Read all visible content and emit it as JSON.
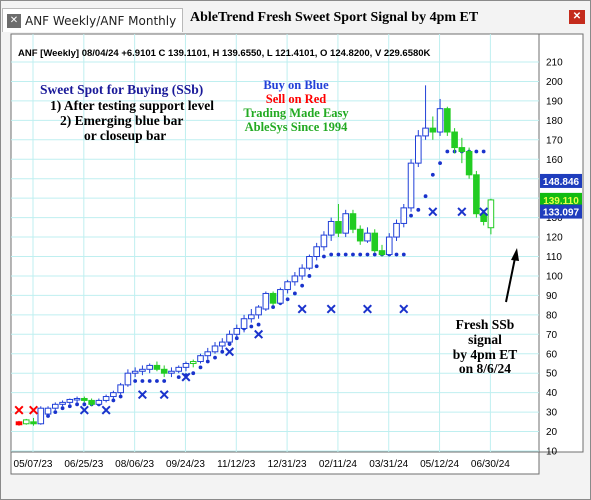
{
  "window": {
    "title": "AbleTrend Fresh Sweet Sport Signal by 4pm ET",
    "tabs": [
      {
        "label": "ANF Weekly/ANF Monthly",
        "active": true
      }
    ]
  },
  "colors": {
    "buy": "#2140d8",
    "sell": "#ff0000",
    "green": "#22cc22",
    "annotation_blue": "#1a1a99",
    "annotation_green": "#22aa22",
    "grid": "#bfeff0",
    "dots": "#1a33cc",
    "last_price_box": "#1f3dbd",
    "last_green_box": "#11bb11"
  },
  "chart_data": {
    "type": "candlestick",
    "symbol_info": "ANF [Weekly] 08/04/24 +6.9101 C 139.1101, H 139.6550, L 121.4101, O 124.8200, V 229.6580K",
    "y_ticks": [
      10,
      20,
      30,
      40,
      50,
      60,
      70,
      80,
      90,
      100,
      110,
      120,
      130,
      140,
      150,
      160,
      170,
      180,
      190,
      200,
      210
    ],
    "ylim": [
      10,
      210
    ],
    "x_ticks": [
      "05/07/23",
      "06/25/23",
      "08/06/23",
      "09/24/23",
      "11/12/23",
      "12/31/23",
      "02/11/24",
      "03/31/24",
      "05/12/24",
      "06/30/24"
    ],
    "price_tags": [
      {
        "value": 148.846,
        "label": "148.846",
        "style": "blue"
      },
      {
        "value": 139.11,
        "label": "139.110",
        "style": "green"
      },
      {
        "value": 133.097,
        "label": "133.097",
        "style": "blue"
      }
    ],
    "candles": [
      {
        "o": 25.0,
        "h": 25.5,
        "l": 23.0,
        "c": 23.5,
        "col": "red"
      },
      {
        "o": 24.0,
        "h": 26.5,
        "l": 23.5,
        "c": 26.0,
        "col": "green"
      },
      {
        "o": 25.0,
        "h": 27.0,
        "l": 23.0,
        "c": 24.0,
        "col": "green"
      },
      {
        "o": 24.0,
        "h": 33.0,
        "l": 23.5,
        "c": 32.0,
        "col": "blue"
      },
      {
        "o": 29.0,
        "h": 33.0,
        "l": 28.0,
        "c": 32.0,
        "col": "blue"
      },
      {
        "o": 32.0,
        "h": 35.0,
        "l": 31.0,
        "c": 34.0,
        "col": "blue"
      },
      {
        "o": 34.0,
        "h": 36.0,
        "l": 33.0,
        "c": 35.0,
        "col": "blue"
      },
      {
        "o": 35.0,
        "h": 37.0,
        "l": 34.0,
        "c": 36.5,
        "col": "blue"
      },
      {
        "o": 36.5,
        "h": 38.0,
        "l": 35.0,
        "c": 37.0,
        "col": "blue"
      },
      {
        "o": 37.0,
        "h": 38.0,
        "l": 35.0,
        "c": 36.0,
        "col": "green"
      },
      {
        "o": 36.0,
        "h": 37.0,
        "l": 33.0,
        "c": 34.0,
        "col": "green"
      },
      {
        "o": 34.0,
        "h": 37.0,
        "l": 33.0,
        "c": 36.0,
        "col": "blue"
      },
      {
        "o": 36.0,
        "h": 39.0,
        "l": 35.0,
        "c": 38.0,
        "col": "blue"
      },
      {
        "o": 38.0,
        "h": 41.0,
        "l": 37.0,
        "c": 40.0,
        "col": "blue"
      },
      {
        "o": 40.0,
        "h": 45.0,
        "l": 39.0,
        "c": 44.0,
        "col": "blue"
      },
      {
        "o": 44.0,
        "h": 52.0,
        "l": 43.0,
        "c": 50.0,
        "col": "blue"
      },
      {
        "o": 50.0,
        "h": 53.0,
        "l": 48.0,
        "c": 51.0,
        "col": "blue"
      },
      {
        "o": 51.0,
        "h": 54.0,
        "l": 49.0,
        "c": 52.0,
        "col": "blue"
      },
      {
        "o": 52.0,
        "h": 55.0,
        "l": 50.0,
        "c": 54.0,
        "col": "blue"
      },
      {
        "o": 54.0,
        "h": 56.0,
        "l": 51.0,
        "c": 52.0,
        "col": "green"
      },
      {
        "o": 52.0,
        "h": 54.0,
        "l": 48.0,
        "c": 50.0,
        "col": "green"
      },
      {
        "o": 50.0,
        "h": 53.0,
        "l": 48.0,
        "c": 51.0,
        "col": "blue"
      },
      {
        "o": 51.0,
        "h": 54.0,
        "l": 50.0,
        "c": 53.0,
        "col": "blue"
      },
      {
        "o": 53.0,
        "h": 56.0,
        "l": 51.0,
        "c": 55.0,
        "col": "blue"
      },
      {
        "o": 55.0,
        "h": 57.0,
        "l": 53.0,
        "c": 56.0,
        "col": "green"
      },
      {
        "o": 56.0,
        "h": 60.0,
        "l": 55.0,
        "c": 59.0,
        "col": "blue"
      },
      {
        "o": 59.0,
        "h": 63.0,
        "l": 57.0,
        "c": 61.0,
        "col": "blue"
      },
      {
        "o": 61.0,
        "h": 66.0,
        "l": 60.0,
        "c": 64.0,
        "col": "blue"
      },
      {
        "o": 64.0,
        "h": 68.0,
        "l": 62.0,
        "c": 66.0,
        "col": "blue"
      },
      {
        "o": 66.0,
        "h": 72.0,
        "l": 64.0,
        "c": 70.0,
        "col": "blue"
      },
      {
        "o": 70.0,
        "h": 75.0,
        "l": 68.0,
        "c": 73.0,
        "col": "blue"
      },
      {
        "o": 73.0,
        "h": 80.0,
        "l": 71.0,
        "c": 78.0,
        "col": "blue"
      },
      {
        "o": 78.0,
        "h": 83.0,
        "l": 76.0,
        "c": 80.0,
        "col": "blue"
      },
      {
        "o": 80.0,
        "h": 85.0,
        "l": 78.0,
        "c": 84.0,
        "col": "blue"
      },
      {
        "o": 83.0,
        "h": 92.0,
        "l": 82.0,
        "c": 91.0,
        "col": "blue"
      },
      {
        "o": 91.0,
        "h": 92.0,
        "l": 85.0,
        "c": 86.0,
        "col": "green"
      },
      {
        "o": 86.0,
        "h": 94.0,
        "l": 85.0,
        "c": 93.0,
        "col": "blue"
      },
      {
        "o": 93.0,
        "h": 98.0,
        "l": 91.0,
        "c": 97.0,
        "col": "blue"
      },
      {
        "o": 97.0,
        "h": 102.0,
        "l": 95.0,
        "c": 100.0,
        "col": "blue"
      },
      {
        "o": 100.0,
        "h": 106.0,
        "l": 98.0,
        "c": 104.0,
        "col": "blue"
      },
      {
        "o": 104.0,
        "h": 111.0,
        "l": 103.0,
        "c": 110.0,
        "col": "blue"
      },
      {
        "o": 110.0,
        "h": 117.0,
        "l": 108.0,
        "c": 115.0,
        "col": "blue"
      },
      {
        "o": 115.0,
        "h": 123.0,
        "l": 113.0,
        "c": 121.0,
        "col": "blue"
      },
      {
        "o": 121.0,
        "h": 130.0,
        "l": 118.0,
        "c": 128.0,
        "col": "blue"
      },
      {
        "o": 128.0,
        "h": 137.0,
        "l": 120.0,
        "c": 122.0,
        "col": "green"
      },
      {
        "o": 122.0,
        "h": 134.0,
        "l": 120.0,
        "c": 132.0,
        "col": "blue"
      },
      {
        "o": 132.0,
        "h": 134.0,
        "l": 122.0,
        "c": 124.0,
        "col": "green"
      },
      {
        "o": 124.0,
        "h": 126.0,
        "l": 116.0,
        "c": 118.0,
        "col": "green"
      },
      {
        "o": 118.0,
        "h": 125.0,
        "l": 117.0,
        "c": 122.0,
        "col": "blue"
      },
      {
        "o": 122.0,
        "h": 124.0,
        "l": 112.0,
        "c": 113.0,
        "col": "green"
      },
      {
        "o": 113.0,
        "h": 116.0,
        "l": 110.0,
        "c": 111.0,
        "col": "green"
      },
      {
        "o": 111.0,
        "h": 122.0,
        "l": 110.0,
        "c": 120.0,
        "col": "blue"
      },
      {
        "o": 120.0,
        "h": 129.0,
        "l": 118.0,
        "c": 127.0,
        "col": "blue"
      },
      {
        "o": 127.0,
        "h": 137.0,
        "l": 125.0,
        "c": 135.0,
        "col": "blue"
      },
      {
        "o": 135.0,
        "h": 160.0,
        "l": 133.0,
        "c": 158.0,
        "col": "blue"
      },
      {
        "o": 158.0,
        "h": 175.0,
        "l": 156.0,
        "c": 172.0,
        "col": "blue"
      },
      {
        "o": 172.0,
        "h": 198.0,
        "l": 170.0,
        "c": 176.0,
        "col": "blue"
      },
      {
        "o": 176.0,
        "h": 182.0,
        "l": 170.0,
        "c": 174.0,
        "col": "green"
      },
      {
        "o": 174.0,
        "h": 191.0,
        "l": 172.0,
        "c": 186.0,
        "col": "blue"
      },
      {
        "o": 186.0,
        "h": 187.0,
        "l": 172.0,
        "c": 174.0,
        "col": "green"
      },
      {
        "o": 174.0,
        "h": 176.0,
        "l": 163.0,
        "c": 166.0,
        "col": "green"
      },
      {
        "o": 166.0,
        "h": 171.0,
        "l": 158.0,
        "c": 164.0,
        "col": "green"
      },
      {
        "o": 164.0,
        "h": 166.0,
        "l": 150.0,
        "c": 152.0,
        "col": "green"
      },
      {
        "o": 152.0,
        "h": 154.0,
        "l": 130.0,
        "c": 132.0,
        "col": "green"
      },
      {
        "o": 132.0,
        "h": 134.0,
        "l": 126.0,
        "c": 128.0,
        "col": "green"
      },
      {
        "o": 124.8,
        "h": 139.7,
        "l": 121.4,
        "c": 139.1,
        "col": "green"
      }
    ],
    "stop_dots": [
      {
        "i": 3,
        "v": 27
      },
      {
        "i": 4,
        "v": 28
      },
      {
        "i": 5,
        "v": 30
      },
      {
        "i": 6,
        "v": 32
      },
      {
        "i": 7,
        "v": 33
      },
      {
        "i": 8,
        "v": 34
      },
      {
        "i": 9,
        "v": 34
      },
      {
        "i": 10,
        "v": 34
      },
      {
        "i": 11,
        "v": 34
      },
      {
        "i": 13,
        "v": 36
      },
      {
        "i": 14,
        "v": 38
      },
      {
        "i": 15,
        "v": 46
      },
      {
        "i": 16,
        "v": 46
      },
      {
        "i": 17,
        "v": 46
      },
      {
        "i": 18,
        "v": 46
      },
      {
        "i": 19,
        "v": 46
      },
      {
        "i": 20,
        "v": 46
      },
      {
        "i": 22,
        "v": 48
      },
      {
        "i": 23,
        "v": 49
      },
      {
        "i": 24,
        "v": 50
      },
      {
        "i": 25,
        "v": 53
      },
      {
        "i": 26,
        "v": 56
      },
      {
        "i": 27,
        "v": 58
      },
      {
        "i": 28,
        "v": 61
      },
      {
        "i": 29,
        "v": 65
      },
      {
        "i": 30,
        "v": 68
      },
      {
        "i": 31,
        "v": 73
      },
      {
        "i": 32,
        "v": 74
      },
      {
        "i": 33,
        "v": 75
      },
      {
        "i": 34,
        "v": 84
      },
      {
        "i": 35,
        "v": 84
      },
      {
        "i": 36,
        "v": 86
      },
      {
        "i": 37,
        "v": 88
      },
      {
        "i": 38,
        "v": 91
      },
      {
        "i": 39,
        "v": 95
      },
      {
        "i": 40,
        "v": 100
      },
      {
        "i": 41,
        "v": 105
      },
      {
        "i": 42,
        "v": 110
      },
      {
        "i": 43,
        "v": 111
      },
      {
        "i": 44,
        "v": 111
      },
      {
        "i": 45,
        "v": 111
      },
      {
        "i": 46,
        "v": 111
      },
      {
        "i": 47,
        "v": 111
      },
      {
        "i": 48,
        "v": 111
      },
      {
        "i": 49,
        "v": 111
      },
      {
        "i": 50,
        "v": 111
      },
      {
        "i": 51,
        "v": 111
      },
      {
        "i": 52,
        "v": 111
      },
      {
        "i": 53,
        "v": 111
      },
      {
        "i": 54,
        "v": 131
      },
      {
        "i": 55,
        "v": 134
      },
      {
        "i": 56,
        "v": 141
      },
      {
        "i": 57,
        "v": 152
      },
      {
        "i": 58,
        "v": 158
      },
      {
        "i": 59,
        "v": 164
      },
      {
        "i": 60,
        "v": 164
      },
      {
        "i": 61,
        "v": 164
      },
      {
        "i": 62,
        "v": 164
      },
      {
        "i": 63,
        "v": 164
      },
      {
        "i": 64,
        "v": 164
      }
    ],
    "x_markers": [
      {
        "i": 0,
        "v": 31,
        "col": "red"
      },
      {
        "i": 2,
        "v": 31,
        "col": "red"
      },
      {
        "i": 9,
        "v": 31,
        "col": "blue"
      },
      {
        "i": 12,
        "v": 31,
        "col": "blue"
      },
      {
        "i": 17,
        "v": 39,
        "col": "blue"
      },
      {
        "i": 20,
        "v": 39,
        "col": "blue"
      },
      {
        "i": 23,
        "v": 48,
        "col": "blue"
      },
      {
        "i": 29,
        "v": 61,
        "col": "blue"
      },
      {
        "i": 33,
        "v": 70,
        "col": "blue"
      },
      {
        "i": 39,
        "v": 83,
        "col": "blue"
      },
      {
        "i": 43,
        "v": 83,
        "col": "blue"
      },
      {
        "i": 48,
        "v": 83,
        "col": "blue"
      },
      {
        "i": 53,
        "v": 83,
        "col": "blue"
      },
      {
        "i": 57,
        "v": 133,
        "col": "blue"
      },
      {
        "i": 61,
        "v": 133,
        "col": "blue"
      },
      {
        "i": 64,
        "v": 133,
        "col": "blue"
      }
    ]
  },
  "annotations": {
    "sweet_spot_title": "Sweet Spot for Buying (SSb)",
    "sweet_spot_line1": "1) After testing support level",
    "sweet_spot_line2": "2) Emerging blue bar",
    "sweet_spot_line3": "or closeup bar",
    "buy_on_blue": "Buy on Blue",
    "sell_on_red": "Sell on Red",
    "trading_made_easy": "Trading Made Easy",
    "ablesys_since": "AbleSys Since 1994",
    "fresh_line1": "Fresh SSb",
    "fresh_line2": "signal",
    "fresh_line3": "by 4pm ET",
    "fresh_line4": "on 8/6/24"
  }
}
